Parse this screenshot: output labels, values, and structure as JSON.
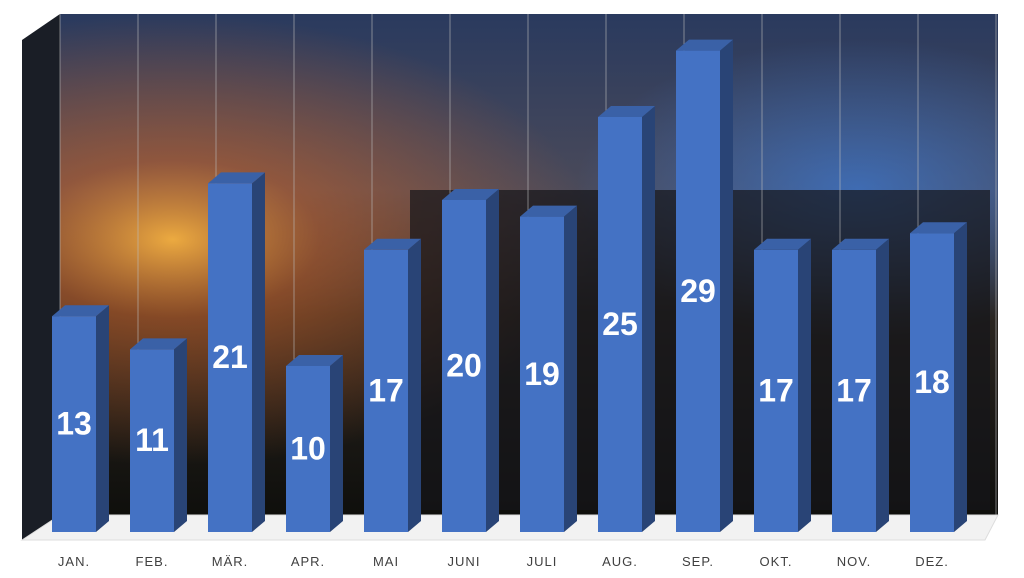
{
  "chart_data": {
    "type": "bar3d",
    "categories": [
      "JAN.",
      "FEB.",
      "MÄR.",
      "APR.",
      "MAI",
      "JUNI",
      "JULI",
      "AUG.",
      "SEP.",
      "OKT.",
      "NOV.",
      "DEZ."
    ],
    "values": [
      13,
      11,
      21,
      10,
      17,
      20,
      19,
      25,
      29,
      17,
      17,
      18
    ],
    "color": "#4472c4"
  }
}
